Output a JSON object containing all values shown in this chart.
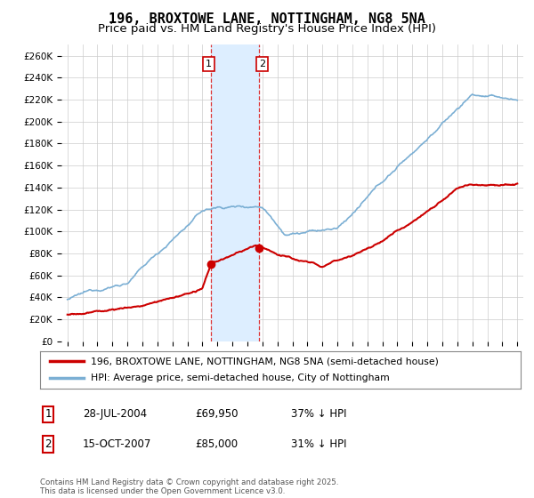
{
  "title": "196, BROXTOWE LANE, NOTTINGHAM, NG8 5NA",
  "subtitle": "Price paid vs. HM Land Registry's House Price Index (HPI)",
  "ylim": [
    0,
    270000
  ],
  "yticks": [
    0,
    20000,
    40000,
    60000,
    80000,
    100000,
    120000,
    140000,
    160000,
    180000,
    200000,
    220000,
    240000,
    260000
  ],
  "ytick_labels": [
    "£0",
    "£20K",
    "£40K",
    "£60K",
    "£80K",
    "£100K",
    "£120K",
    "£140K",
    "£160K",
    "£180K",
    "£200K",
    "£220K",
    "£240K",
    "£260K"
  ],
  "hpi_color": "#7bafd4",
  "price_color": "#cc0000",
  "sale1_date": 2004.57,
  "sale1_price": 69950,
  "sale2_date": 2007.79,
  "sale2_price": 85000,
  "vspan_color": "#ddeeff",
  "vline_color": "#dd3333",
  "background_color": "#ffffff",
  "grid_color": "#cccccc",
  "legend_line1": "196, BROXTOWE LANE, NOTTINGHAM, NG8 5NA (semi-detached house)",
  "legend_line2": "HPI: Average price, semi-detached house, City of Nottingham",
  "annotation1_date": "28-JUL-2004",
  "annotation1_price": "£69,950",
  "annotation1_hpi": "37% ↓ HPI",
  "annotation2_date": "15-OCT-2007",
  "annotation2_price": "£85,000",
  "annotation2_hpi": "31% ↓ HPI",
  "footer": "Contains HM Land Registry data © Crown copyright and database right 2025.\nThis data is licensed under the Open Government Licence v3.0.",
  "title_fontsize": 11,
  "subtitle_fontsize": 9.5,
  "box_border_color": "#cc0000"
}
